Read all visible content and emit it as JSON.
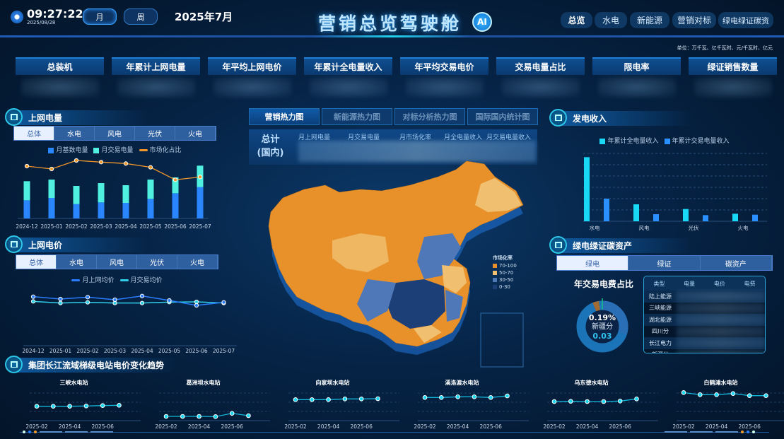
{
  "header": {
    "time": "09:27:22",
    "date": "2025/08/28",
    "period_buttons": [
      "月",
      "周"
    ],
    "active_period": "月",
    "current_month": "2025年7月",
    "title": "营销总览驾驶舱",
    "ai_badge": "AI",
    "nav": [
      "总览",
      "水电",
      "新能源",
      "营销对标",
      "绿电绿证碳资"
    ],
    "active_nav": "总览"
  },
  "unit_note": "单位：万千瓦、亿千瓦时、元/千瓦时、亿元",
  "kpis": [
    "总装机",
    "年累计上网电量",
    "年平均上网电价",
    "年累计全电量收入",
    "年平均交易电价",
    "交易电量占比",
    "限电率",
    "绿证销售数量"
  ],
  "energy_tabs": [
    "总体",
    "水电",
    "风电",
    "光伏",
    "火电"
  ],
  "grid_energy": {
    "title": "上网电量",
    "active_tab": "总体",
    "chart_data": {
      "type": "bar",
      "stacked": true,
      "categories": [
        "2024-12",
        "2025-01",
        "2025-02",
        "2025-03",
        "2025-04",
        "2025-05",
        "2025-06",
        "2025-07"
      ],
      "series": [
        {
          "name": "月基数电量",
          "color": "#2a86ff",
          "values": [
            77,
            87,
            61,
            68,
            66,
            83,
            107,
            133
          ]
        },
        {
          "name": "月交易电量",
          "color": "#4ff0e0",
          "values": [
            81,
            78,
            77,
            82,
            75,
            82,
            67,
            91
          ]
        },
        {
          "name": "市场化占比",
          "type": "line",
          "color": "#f0962a",
          "values": [
            222,
            210,
            246,
            239,
            233,
            217,
            164,
            176
          ]
        }
      ]
    }
  },
  "grid_price": {
    "title": "上网电价",
    "active_tab": "总体",
    "chart_data": {
      "type": "line",
      "categories": [
        "2024-12",
        "2025-01",
        "2025-02",
        "2025-03",
        "2025-04",
        "2025-05",
        "2025-06",
        "2025-07"
      ],
      "series": [
        {
          "name": "月上网均价",
          "color": "#2a7dff",
          "values": [
            208,
            198,
            206,
            195,
            211,
            192,
            171,
            184
          ]
        },
        {
          "name": "月交易均价",
          "color": "#2fd0e8",
          "values": [
            188,
            181,
            184,
            181,
            181,
            185,
            186,
            181
          ]
        }
      ]
    }
  },
  "center": {
    "tabs": [
      "营销热力图",
      "新能源热力图",
      "对标分析热力图",
      "国际国内统计图"
    ],
    "active_tab": "营销热力图",
    "summary_label": "总计",
    "summary_sub": "(国内)",
    "summary_cols": [
      "月上网电量",
      "月交易电量",
      "月市场化率",
      "月全电量收入",
      "月交易电量收入"
    ],
    "map_legend": {
      "title": "市场化率",
      "items": [
        {
          "label": "70-100",
          "color": "#e8912a"
        },
        {
          "label": "50-70",
          "color": "#f0c070"
        },
        {
          "label": "30-50",
          "color": "#4f78b8"
        },
        {
          "label": "0-30",
          "color": "#1d3f78"
        }
      ]
    }
  },
  "revenue": {
    "title": "发电收入",
    "chart_data": {
      "type": "bar",
      "categories": [
        "水电",
        "风电",
        "光伏",
        "火电"
      ],
      "series": [
        {
          "name": "年累计全电量收入",
          "color": "#19d8f5",
          "values": [
            272,
            72,
            52,
            32
          ]
        },
        {
          "name": "年累计交易电量收入",
          "color": "#2a8fff",
          "values": [
            96,
            30,
            26,
            28
          ]
        }
      ],
      "grid": true
    }
  },
  "green": {
    "title": "绿电绿证碳资产",
    "tabs": [
      "绿电",
      "绿证",
      "碳资产"
    ],
    "active_tab": "绿电",
    "donut_title": "年交易电费占比",
    "donut_pct": "0.19%",
    "donut_label": "新疆分",
    "donut_value": "0.03",
    "donut_share": 0.0019,
    "table_headers": [
      "类型",
      "电量",
      "电价",
      "电费"
    ],
    "table_rows": [
      "陆上能源",
      "三峡能源",
      "湖北能源",
      "四川分",
      "长江电力",
      "新疆分"
    ]
  },
  "stations": {
    "title": "集团长江流域梯级电站电价变化趋势",
    "x_ticks": [
      "2025-02",
      "2025-04",
      "2025-06"
    ],
    "items": [
      {
        "name": "三峡水电站",
        "values": [
          61,
          61,
          61,
          62,
          64,
          65
        ]
      },
      {
        "name": "葛洲坝水电站",
        "values": [
          18,
          18,
          18,
          17,
          31,
          21
        ]
      },
      {
        "name": "向家坝水电站",
        "values": [
          89,
          89,
          89,
          92,
          92,
          93
        ]
      },
      {
        "name": "溪洛渡水电站",
        "values": [
          98,
          98,
          101,
          101,
          98,
          105
        ]
      },
      {
        "name": "乌东德水电站",
        "values": [
          81,
          82,
          81,
          81,
          83,
          92
        ]
      },
      {
        "name": "白鹤滩水电站",
        "values": [
          119,
          110,
          110,
          115,
          106,
          106
        ]
      }
    ]
  }
}
